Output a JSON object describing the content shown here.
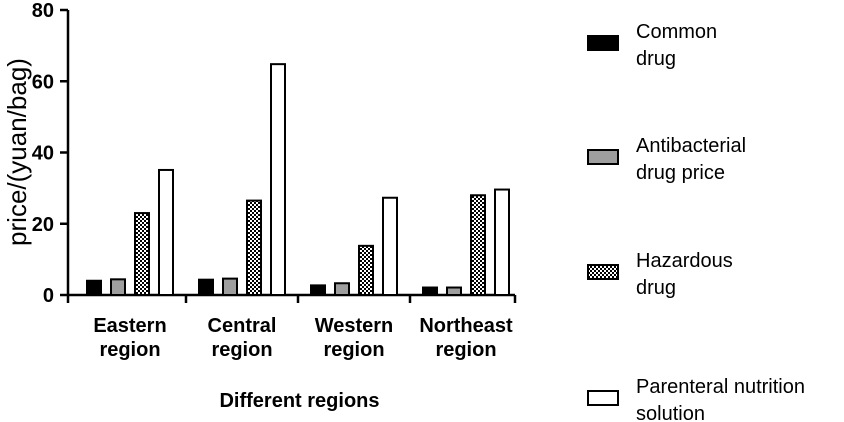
{
  "chart_data": {
    "type": "bar",
    "categories": [
      "Eastern region",
      "Central region",
      "Western region",
      "Northeast region"
    ],
    "category_lines": [
      [
        "Eastern",
        "region"
      ],
      [
        "Central",
        "region"
      ],
      [
        "Western",
        "region"
      ],
      [
        "Northeast",
        "region"
      ]
    ],
    "series": [
      {
        "name": "Common drug",
        "name_lines": [
          "Common",
          "drug"
        ],
        "values": [
          4,
          4.3,
          2.7,
          2.1
        ],
        "fill": "solid-black"
      },
      {
        "name": "Antibacterial drug price",
        "name_lines": [
          "Antibacterial",
          "drug price"
        ],
        "values": [
          4.4,
          4.6,
          3.3,
          2.1
        ],
        "fill": "solid-gray"
      },
      {
        "name": "Hazardous drug",
        "name_lines": [
          "Hazardous",
          "drug"
        ],
        "values": [
          23,
          26.5,
          13.8,
          28
        ],
        "fill": "checkered"
      },
      {
        "name": "Parenteral nutrition solution",
        "name_lines": [
          "Parenteral nutrition",
          "solution"
        ],
        "values": [
          35.1,
          64.8,
          27.3,
          29.6
        ],
        "fill": "white"
      }
    ],
    "ylabel": "price/(yuan/bag)",
    "xlabel": "Different regions",
    "ylim": [
      0,
      80
    ],
    "yticks": [
      0,
      20,
      40,
      60,
      80
    ],
    "grid": false,
    "legend_position": "right",
    "colors": {
      "black": "#000000",
      "gray": "#9e9e9e",
      "white": "#ffffff"
    }
  }
}
